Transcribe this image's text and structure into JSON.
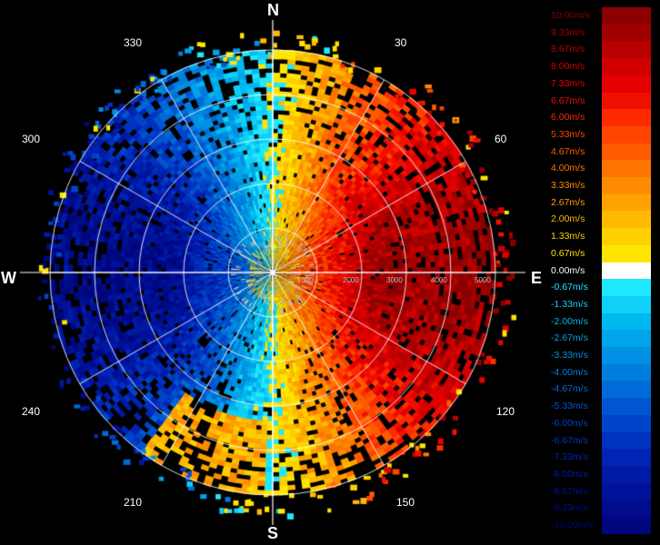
{
  "compass": {
    "north": "N",
    "east": "E",
    "south": "S",
    "west": "W"
  },
  "azimuth_labels": [
    {
      "deg": 30,
      "text": "30"
    },
    {
      "deg": 60,
      "text": "60"
    },
    {
      "deg": 120,
      "text": "120"
    },
    {
      "deg": 150,
      "text": "150"
    },
    {
      "deg": 210,
      "text": "210"
    },
    {
      "deg": 240,
      "text": "240"
    },
    {
      "deg": 300,
      "text": "300"
    },
    {
      "deg": 330,
      "text": "330"
    }
  ],
  "range_rings": [
    "1000",
    "2000",
    "3000",
    "4000",
    "5000"
  ],
  "color_scale": [
    {
      "label": "10.00m/s",
      "color": "#8b0000"
    },
    {
      "label": "9.33m/s",
      "color": "#a00000"
    },
    {
      "label": "8.67m/s",
      "color": "#b80000"
    },
    {
      "label": "8.00m/s",
      "color": "#d00000"
    },
    {
      "label": "7.33m/s",
      "color": "#e40000"
    },
    {
      "label": "6.67m/s",
      "color": "#f01000"
    },
    {
      "label": "6.00m/s",
      "color": "#ff2a00"
    },
    {
      "label": "5.33m/s",
      "color": "#ff4500"
    },
    {
      "label": "4.67m/s",
      "color": "#ff5c00"
    },
    {
      "label": "4.00m/s",
      "color": "#ff7400"
    },
    {
      "label": "3.33m/s",
      "color": "#ff8c00"
    },
    {
      "label": "2.67m/s",
      "color": "#ffa200"
    },
    {
      "label": "2.00m/s",
      "color": "#ffba00"
    },
    {
      "label": "1.33m/s",
      "color": "#ffd000"
    },
    {
      "label": "0.67m/s",
      "color": "#ffe600"
    },
    {
      "label": "0.00m/s",
      "color": "#ffffff"
    },
    {
      "label": "-0.67m/s",
      "color": "#20e8ff"
    },
    {
      "label": "-1.33m/s",
      "color": "#10d0f8"
    },
    {
      "label": "-2.00m/s",
      "color": "#00b8f0"
    },
    {
      "label": "-2.67m/s",
      "color": "#00a4ea"
    },
    {
      "label": "-3.33m/s",
      "color": "#0090e4"
    },
    {
      "label": "-4.00m/s",
      "color": "#007ede"
    },
    {
      "label": "-4.67m/s",
      "color": "#006ad8"
    },
    {
      "label": "-5.33m/s",
      "color": "#0056d0"
    },
    {
      "label": "-6.00m/s",
      "color": "#0044ca"
    },
    {
      "label": "-6.67m/s",
      "color": "#0032c0"
    },
    {
      "label": "-7.33m/s",
      "color": "#0024b4"
    },
    {
      "label": "-8.00m/s",
      "color": "#001aa6"
    },
    {
      "label": "-8.67m/s",
      "color": "#00129a"
    },
    {
      "label": "-9.33m/s",
      "color": "#000c8c"
    },
    {
      "label": "-10.00m/s",
      "color": "#00067c"
    }
  ]
}
